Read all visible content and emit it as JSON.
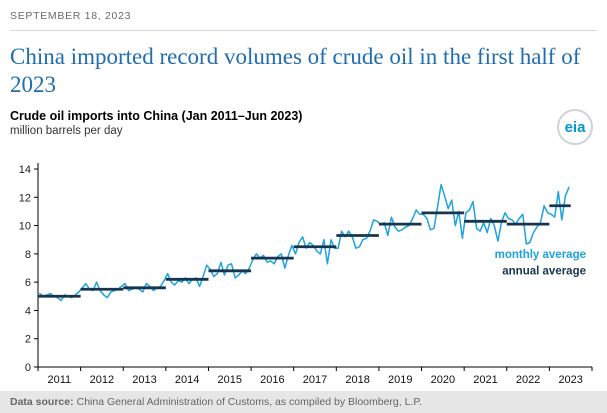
{
  "page": {
    "date": "SEPTEMBER 18, 2023",
    "title": "China imported record volumes of crude oil in the first half of 2023",
    "logo_text": "eia",
    "footer": {
      "label": "Data source:",
      "text": "China General Administration of Customs, as compiled by Bloomberg, L.P."
    }
  },
  "chart_data": {
    "type": "line",
    "title": "Crude oil imports into China (Jan 2011–Jun 2023)",
    "ylabel": "million barrels per day",
    "ylim": [
      0,
      14
    ],
    "yticks": [
      0,
      2,
      4,
      6,
      8,
      10,
      12,
      14
    ],
    "years": [
      2011,
      2012,
      2013,
      2014,
      2015,
      2016,
      2017,
      2018,
      2019,
      2020,
      2021,
      2022,
      2023
    ],
    "x_start": "Jan 2011",
    "x_end": "Jun 2023",
    "grid": false,
    "legend_position": "right-middle",
    "series": [
      {
        "name": "monthly average",
        "color": "#1da3dd",
        "values": [
          5.2,
          5.0,
          5.1,
          5.2,
          5.0,
          4.9,
          4.7,
          5.1,
          5.0,
          4.9,
          5.1,
          5.3,
          5.6,
          5.9,
          5.5,
          5.4,
          6.0,
          5.4,
          5.1,
          4.9,
          5.3,
          5.4,
          5.5,
          5.7,
          5.9,
          5.4,
          5.5,
          5.6,
          5.5,
          5.3,
          5.9,
          5.7,
          5.4,
          5.6,
          5.7,
          6.1,
          6.6,
          6.0,
          5.8,
          6.1,
          6.0,
          6.3,
          5.9,
          6.2,
          6.3,
          5.7,
          6.4,
          7.2,
          6.9,
          6.4,
          6.6,
          7.4,
          6.5,
          7.2,
          7.3,
          6.3,
          6.5,
          6.8,
          6.6,
          7.0,
          7.6,
          8.0,
          7.7,
          7.9,
          7.4,
          7.5,
          7.3,
          7.8,
          8.0,
          7.0,
          7.9,
          8.6,
          8.0,
          8.8,
          9.2,
          8.4,
          8.8,
          8.6,
          8.2,
          8.0,
          9.0,
          7.3,
          9.0,
          8.4,
          8.4,
          9.6,
          9.2,
          9.6,
          9.2,
          8.4,
          8.5,
          9.0,
          9.1,
          9.6,
          10.4,
          10.3,
          10.1,
          10.2,
          9.3,
          10.6,
          9.9,
          9.6,
          9.7,
          9.9,
          10.0,
          10.5,
          11.1,
          10.8,
          10.8,
          10.5,
          9.7,
          9.8,
          11.3,
          12.9,
          12.1,
          11.2,
          11.8,
          10.0,
          11.0,
          9.1,
          10.9,
          11.1,
          11.7,
          9.8,
          9.6,
          10.2,
          9.5,
          10.5,
          10.0,
          8.9,
          10.2,
          10.9,
          10.5,
          10.4,
          10.1,
          10.5,
          10.8,
          8.7,
          8.8,
          9.5,
          9.9,
          10.2,
          11.4,
          10.9,
          10.8,
          10.6,
          12.4,
          10.4,
          12.1,
          12.7
        ]
      },
      {
        "name": "annual average",
        "color": "#17364e",
        "values": [
          5.0,
          5.5,
          5.6,
          6.2,
          6.8,
          7.7,
          8.5,
          9.3,
          10.1,
          10.9,
          10.3,
          10.1,
          11.4
        ]
      }
    ]
  }
}
